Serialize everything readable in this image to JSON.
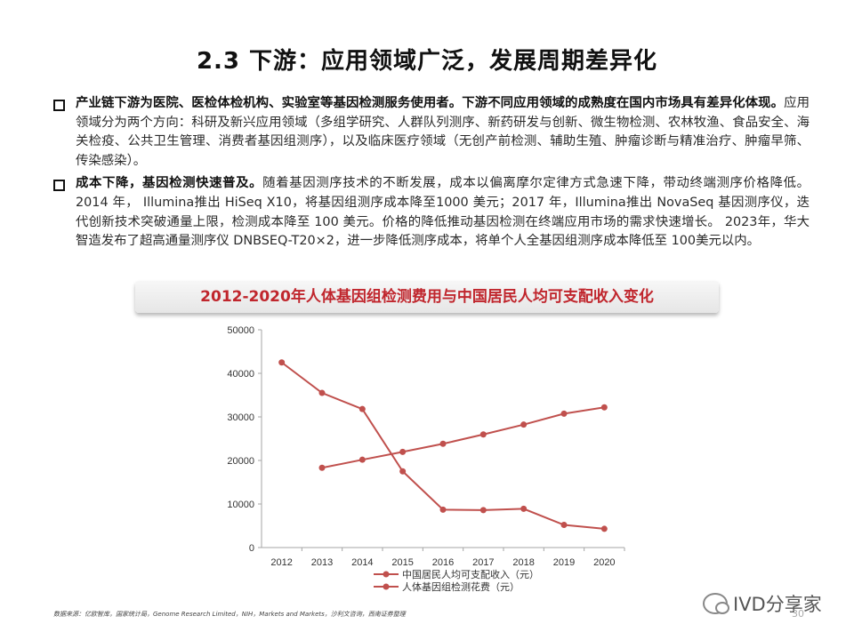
{
  "slide": {
    "title": "2.3 下游：应用领域广泛，发展周期差异化",
    "bullets": [
      {
        "bold": "产业链下游为医院、医检体检机构、实验室等基因检测服务使用者。下游不同应用领域的成熟度在国内市场具有差异化体现。",
        "text": "应用领域分为两个方向：科研及新兴应用领域（多组学研究、人群队列测序、新药研发与创新、微生物检测、农林牧渔、食品安全、海关检疫、公共卫生管理、消费者基因组测序），以及临床医疗领域（无创产前检测、辅助生殖、肿瘤诊断与精准治疗、肿瘤早筛、传染感染）。"
      },
      {
        "bold": "成本下降，基因检测快速普及。",
        "text": "随着基因测序技术的不断发展，成本以偏离摩尔定律方式急速下降，带动终端测序价格降低。 2014 年， Illumina推出 HiSeq X10，将基因组测序成本降至1000 美元；2017 年，Illumina推出 NovaSeq 基因测序仪，迭代创新技术突破通量上限，检测成本降至 100 美元。价格的降低推动基因检测在终端应用市场的需求快速增长。 2023年，华大智造发布了超高通量测序仪 DNBSEQ-T20×2，进一步降低测序成本，将单个人全基因组测序成本降低至 100美元以内。"
      }
    ],
    "chart_title": "2012-2020年人体基因组检测费用与中国居民人均可支配收入变化",
    "source": "数据来源：亿欧智库，国家统计局，Genome Research Limited，NIH，Markets and Markets，沙利文咨询，西南证券整理",
    "watermark": "IVD分享家",
    "page_number": "30"
  },
  "chart_data": {
    "type": "line",
    "title": "2012-2020年人体基因组检测费用与中国居民人均可支配收入变化",
    "x": [
      "2012",
      "2013",
      "2014",
      "2015",
      "2016",
      "2017",
      "2018",
      "2019",
      "2020"
    ],
    "ylim": [
      0,
      50000
    ],
    "yticks": [
      0,
      10000,
      20000,
      30000,
      40000,
      50000
    ],
    "grid": false,
    "legend_position": "bottom",
    "series": [
      {
        "name": "中国居民人均可支配收入（元）",
        "values": [
          null,
          18311,
          20167,
          21966,
          23821,
          25974,
          28228,
          30733,
          32189
        ],
        "color": "#c0504d"
      },
      {
        "name": "人体基因组检测花费（元）",
        "values": [
          42500,
          35500,
          31800,
          17500,
          8700,
          8600,
          8900,
          5200,
          4300
        ],
        "color": "#c0504d"
      }
    ]
  }
}
